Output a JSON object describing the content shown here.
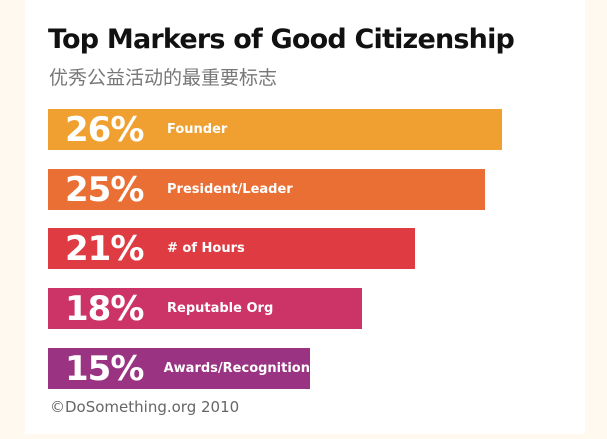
{
  "header": {
    "title": "Top Markers of Good Citizenship",
    "subtitle": "优秀公益活动的最重要标志"
  },
  "bars": [
    {
      "pct": "26%",
      "label": "Founder",
      "color": "#f0a030"
    },
    {
      "pct": "25%",
      "label": "President/Leader",
      "color": "#ea6f35"
    },
    {
      "pct": "21%",
      "label": "# of Hours",
      "color": "#de3c42"
    },
    {
      "pct": "18%",
      "label": "Reputable Org",
      "color": "#cc3468"
    },
    {
      "pct": "15%",
      "label": "Awards/Recognition",
      "color": "#9a3381"
    }
  ],
  "footer": {
    "source": "©DoSomething.org 2010"
  },
  "chart_data": {
    "type": "bar",
    "orientation": "horizontal",
    "title": "Top Markers of Good Citizenship",
    "subtitle": "优秀公益活动的最重要标志",
    "categories": [
      "Founder",
      "President/Leader",
      "# of Hours",
      "Reputable Org",
      "Awards/Recognition"
    ],
    "values": [
      26,
      25,
      21,
      18,
      15
    ],
    "unit": "%",
    "colors": [
      "#f0a030",
      "#ea6f35",
      "#de3c42",
      "#cc3468",
      "#9a3381"
    ],
    "xlabel": "",
    "ylabel": "",
    "grid": false,
    "legend": "none",
    "source": "©DoSomething.org 2010"
  }
}
